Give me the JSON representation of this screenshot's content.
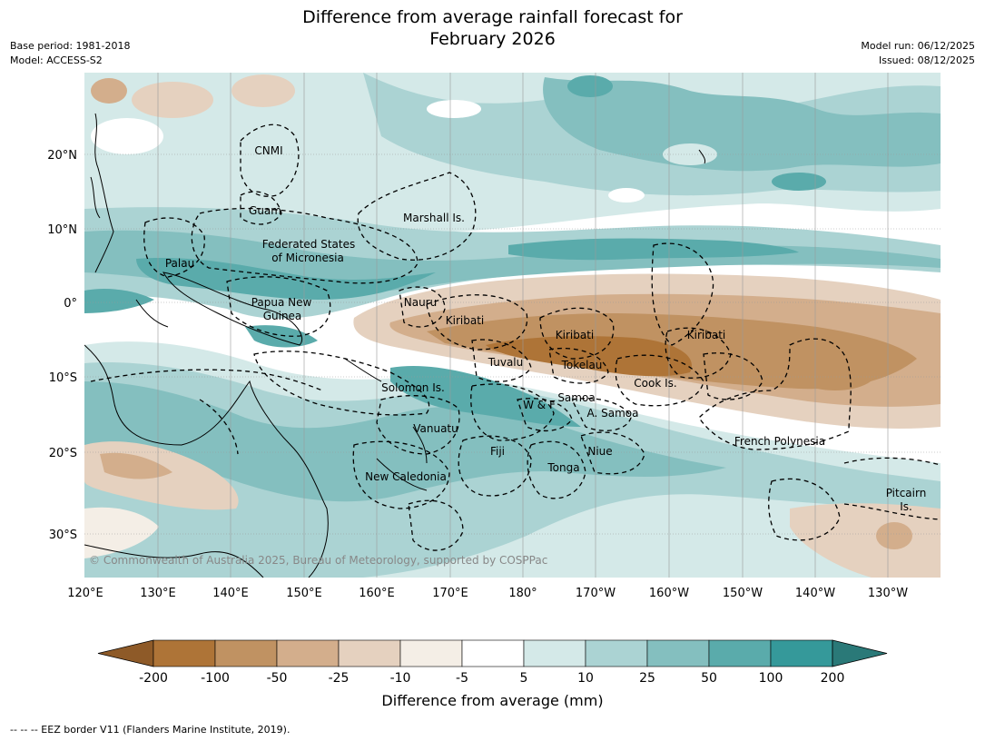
{
  "title_line1": "Difference from average rainfall forecast for",
  "title_line2": "February 2026",
  "base_period": "Base period: 1981-2018",
  "model": "Model: ACCESS-S2",
  "model_run": "Model run: 06/12/2025",
  "issued": "Issued: 08/12/2025",
  "longitude_ticks": [
    "120°E",
    "130°E",
    "140°E",
    "150°E",
    "160°E",
    "170°E",
    "180°",
    "170°W",
    "160°W",
    "150°W",
    "140°W",
    "130°W"
  ],
  "latitude_ticks": [
    "20°N",
    "10°N",
    "0°",
    "10°S",
    "20°S",
    "30°S"
  ],
  "places": [
    {
      "name": "CNMI"
    },
    {
      "name": "Guam"
    },
    {
      "name": "Marshall Is."
    },
    {
      "name": "Federated States"
    },
    {
      "name": "of Micronesia"
    },
    {
      "name": "Palau"
    },
    {
      "name": "Papua New"
    },
    {
      "name": "Guinea"
    },
    {
      "name": "Nauru"
    },
    {
      "name": "Kiribati"
    },
    {
      "name": "Kiribati"
    },
    {
      "name": "Kiribati"
    },
    {
      "name": "Tuvalu"
    },
    {
      "name": "Tokelau"
    },
    {
      "name": "Cook Is."
    },
    {
      "name": "Solomon Is."
    },
    {
      "name": "W & F"
    },
    {
      "name": "Samoa"
    },
    {
      "name": "A. Samoa"
    },
    {
      "name": "Vanuatu"
    },
    {
      "name": "Fiji"
    },
    {
      "name": "Niue"
    },
    {
      "name": "Tonga"
    },
    {
      "name": "French Polynesia"
    },
    {
      "name": "New Caledonia"
    },
    {
      "name": "Pitcairn"
    },
    {
      "name": "Is."
    }
  ],
  "copyright": "© Commonwealth of Australia 2025, Bureau of Meteorology, supported by COSPPac",
  "colorbar": {
    "ticks": [
      "-200",
      "-100",
      "-50",
      "-25",
      "-10",
      "-5",
      "5",
      "10",
      "25",
      "50",
      "100",
      "200"
    ],
    "colors": [
      "#8e5a28",
      "#ae7437",
      "#c09262",
      "#d3ae8c",
      "#e5d1bf",
      "#f4eee6",
      "#ffffff",
      "#d4e9e8",
      "#abd3d3",
      "#84bfbf",
      "#5aabab",
      "#35999a",
      "#2a7978"
    ],
    "label": "Difference from average (mm)"
  },
  "eez_note": "--  --  -- EEZ border V11 (Flanders Marine Institute, 2019)."
}
